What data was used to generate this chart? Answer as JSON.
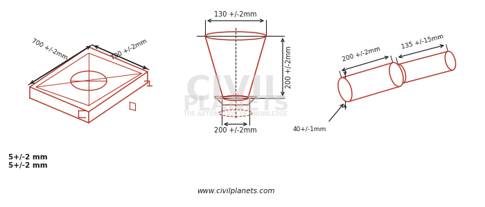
{
  "bg_color": "#ffffff",
  "dc": "#b5382a",
  "lc": "#1a1a1a",
  "wc": "#cccccc",
  "website": "www.civilplanets.com",
  "labels": {
    "dim1": "700 +/-2mm",
    "dim2": "700 +/-2mm",
    "dim3": "130 +/-2mm",
    "dim4": "200 +/-2mm",
    "dim5": "200 +/-2mm",
    "dim6": "200 +/-2mm",
    "dim7": "135 +/-15mm",
    "dim8": "40+/-1mm",
    "dim9": "5+/-2 mm",
    "dim10": "5+/-2 mm"
  }
}
